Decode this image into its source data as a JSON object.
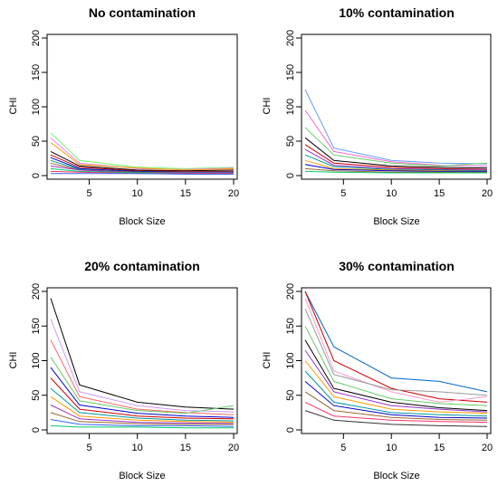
{
  "chart_data": [
    {
      "type": "line",
      "title": "No contamination",
      "xlabel": "Block Size",
      "ylabel": "CHI",
      "xlim": [
        1,
        20
      ],
      "ylim": [
        0,
        200
      ],
      "x_ticks": [
        5,
        10,
        15,
        20
      ],
      "y_ticks": [
        0,
        50,
        100,
        150,
        200
      ],
      "x": [
        1,
        4,
        10,
        15,
        20
      ],
      "series": [
        {
          "color": "#66ff66",
          "values": [
            62,
            22,
            12,
            10,
            12
          ]
        },
        {
          "color": "#ff80ff",
          "values": [
            55,
            18,
            10,
            9,
            11
          ]
        },
        {
          "color": "#ff9900",
          "values": [
            48,
            16,
            11,
            8,
            10
          ]
        },
        {
          "color": "#000000",
          "values": [
            35,
            14,
            8,
            7,
            8
          ]
        },
        {
          "color": "#cc0000",
          "values": [
            30,
            12,
            7,
            6,
            6
          ]
        },
        {
          "color": "#0000cc",
          "values": [
            26,
            10,
            6,
            5,
            5
          ]
        },
        {
          "color": "#009999",
          "values": [
            22,
            9,
            5,
            5,
            5
          ]
        },
        {
          "color": "#996633",
          "values": [
            18,
            8,
            5,
            4,
            4
          ]
        },
        {
          "color": "#9933cc",
          "values": [
            14,
            8,
            4,
            4,
            4
          ]
        },
        {
          "color": "#00cc66",
          "values": [
            10,
            6,
            4,
            3,
            3
          ]
        },
        {
          "color": "#ff3366",
          "values": [
            6,
            5,
            3,
            3,
            3
          ]
        },
        {
          "color": "#3366ff",
          "values": [
            3,
            3,
            3,
            2,
            2
          ]
        }
      ]
    },
    {
      "type": "line",
      "title": "10% contamination",
      "xlabel": "Block Size",
      "ylabel": "CHI",
      "xlim": [
        1,
        20
      ],
      "ylim": [
        0,
        200
      ],
      "x_ticks": [
        5,
        10,
        15,
        20
      ],
      "y_ticks": [
        0,
        50,
        100,
        150,
        200
      ],
      "x": [
        1,
        4,
        10,
        15,
        20
      ],
      "series": [
        {
          "color": "#6699ff",
          "values": [
            125,
            40,
            22,
            18,
            17
          ]
        },
        {
          "color": "#ff66cc",
          "values": [
            95,
            35,
            20,
            15,
            14
          ]
        },
        {
          "color": "#66cc66",
          "values": [
            70,
            30,
            18,
            14,
            18
          ]
        },
        {
          "color": "#000000",
          "values": [
            55,
            22,
            14,
            12,
            11
          ]
        },
        {
          "color": "#cc0000",
          "values": [
            45,
            18,
            12,
            10,
            9
          ]
        },
        {
          "color": "#9933cc",
          "values": [
            38,
            15,
            10,
            9,
            8
          ]
        },
        {
          "color": "#009999",
          "values": [
            30,
            13,
            9,
            8,
            7
          ]
        },
        {
          "color": "#ff9900",
          "values": [
            22,
            10,
            8,
            7,
            6
          ]
        },
        {
          "color": "#0000cc",
          "values": [
            16,
            9,
            7,
            6,
            6
          ]
        },
        {
          "color": "#996633",
          "values": [
            10,
            7,
            5,
            5,
            5
          ]
        },
        {
          "color": "#00cc66",
          "values": [
            6,
            5,
            4,
            4,
            4
          ]
        }
      ]
    },
    {
      "type": "line",
      "title": "20% contamination",
      "xlabel": "Block Size",
      "ylabel": "CHI",
      "xlim": [
        1,
        20
      ],
      "ylim": [
        0,
        200
      ],
      "x_ticks": [
        5,
        10,
        15,
        20
      ],
      "y_ticks": [
        0,
        50,
        100,
        150,
        200
      ],
      "x": [
        1,
        4,
        10,
        15,
        20
      ],
      "series": [
        {
          "color": "#000000",
          "values": [
            190,
            65,
            40,
            33,
            30
          ]
        },
        {
          "color": "#cc99ff",
          "values": [
            160,
            55,
            35,
            28,
            26
          ]
        },
        {
          "color": "#ff6666",
          "values": [
            130,
            48,
            30,
            25,
            22
          ]
        },
        {
          "color": "#66cc66",
          "values": [
            105,
            42,
            28,
            24,
            35
          ]
        },
        {
          "color": "#0000cc",
          "values": [
            90,
            36,
            24,
            20,
            18
          ]
        },
        {
          "color": "#cc0000",
          "values": [
            75,
            30,
            20,
            17,
            16
          ]
        },
        {
          "color": "#009999",
          "values": [
            60,
            25,
            17,
            14,
            13
          ]
        },
        {
          "color": "#ff9900",
          "values": [
            48,
            20,
            14,
            12,
            11
          ]
        },
        {
          "color": "#9933cc",
          "values": [
            36,
            16,
            11,
            10,
            9
          ]
        },
        {
          "color": "#996633",
          "values": [
            25,
            12,
            9,
            8,
            8
          ]
        },
        {
          "color": "#3366ff",
          "values": [
            15,
            8,
            6,
            6,
            5
          ]
        },
        {
          "color": "#00cc66",
          "values": [
            6,
            4,
            4,
            3,
            3
          ]
        }
      ]
    },
    {
      "type": "line",
      "title": "30% contamination",
      "xlabel": "Block Size",
      "ylabel": "CHI",
      "xlim": [
        1,
        20
      ],
      "ylim": [
        0,
        200
      ],
      "x_ticks": [
        5,
        10,
        15,
        20
      ],
      "y_ticks": [
        0,
        50,
        100,
        150,
        200
      ],
      "x": [
        1,
        4,
        10,
        15,
        20
      ],
      "series": [
        {
          "color": "#0066cc",
          "values": [
            200,
            120,
            75,
            70,
            55
          ]
        },
        {
          "color": "#cc0000",
          "values": [
            200,
            100,
            60,
            45,
            40
          ]
        },
        {
          "color": "#ff99cc",
          "values": [
            190,
            85,
            55,
            40,
            48
          ]
        },
        {
          "color": "#999999",
          "values": [
            175,
            80,
            58,
            55,
            50
          ]
        },
        {
          "color": "#66cc66",
          "values": [
            150,
            70,
            45,
            38,
            35
          ]
        },
        {
          "color": "#000000",
          "values": [
            130,
            60,
            40,
            32,
            28
          ]
        },
        {
          "color": "#9933cc",
          "values": [
            115,
            55,
            35,
            30,
            26
          ]
        },
        {
          "color": "#ff9900",
          "values": [
            100,
            48,
            30,
            26,
            24
          ]
        },
        {
          "color": "#009999",
          "values": [
            85,
            40,
            25,
            22,
            20
          ]
        },
        {
          "color": "#0000cc",
          "values": [
            70,
            35,
            22,
            18,
            17
          ]
        },
        {
          "color": "#996633",
          "values": [
            55,
            28,
            18,
            15,
            14
          ]
        },
        {
          "color": "#ff3366",
          "values": [
            40,
            20,
            14,
            12,
            11
          ]
        },
        {
          "color": "#333333",
          "values": [
            28,
            14,
            8,
            6,
            5
          ]
        }
      ]
    }
  ]
}
